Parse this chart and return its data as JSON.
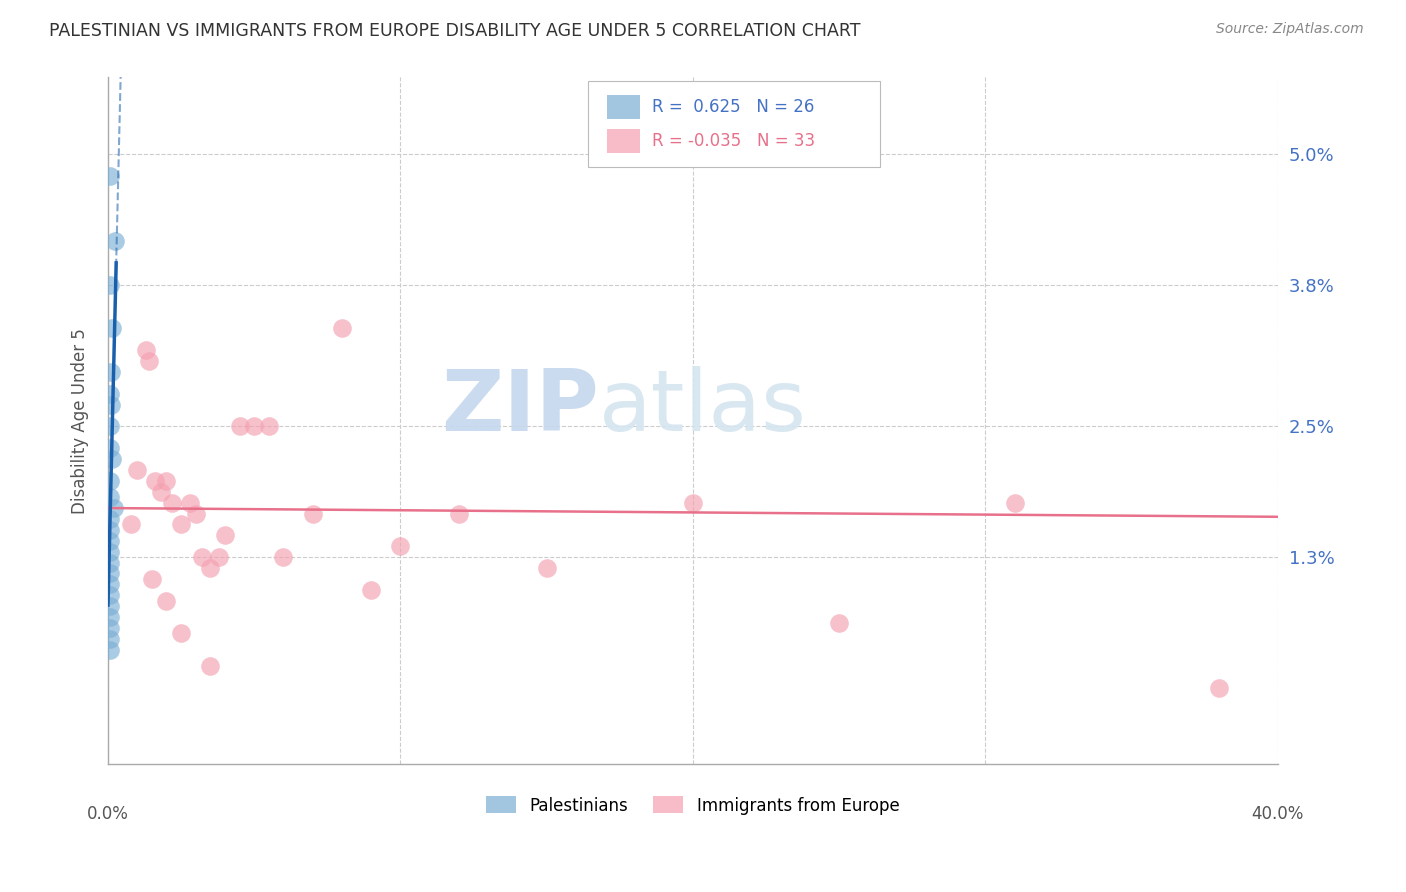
{
  "title": "PALESTINIAN VS IMMIGRANTS FROM EUROPE DISABILITY AGE UNDER 5 CORRELATION CHART",
  "source": "Source: ZipAtlas.com",
  "ylabel": "Disability Age Under 5",
  "ytick_labels": [
    "5.0%",
    "3.8%",
    "2.5%",
    "1.3%"
  ],
  "ytick_values": [
    0.05,
    0.038,
    0.025,
    0.013
  ],
  "xmin": 0.0,
  "xmax": 0.4,
  "ymin": -0.006,
  "ymax": 0.057,
  "legend_blue_r": "0.625",
  "legend_blue_n": "26",
  "legend_pink_r": "-0.035",
  "legend_pink_n": "33",
  "blue_color": "#7BAFD4",
  "pink_color": "#F4A0B0",
  "line_blue": "#1A5FAB",
  "line_pink": "#E8708A",
  "palestinians_x": [
    0.001,
    0.003,
    0.001,
    0.002,
    0.002,
    0.001,
    0.001,
    0.001,
    0.001,
    0.002,
    0.001,
    0.001,
    0.001,
    0.001,
    0.001,
    0.001,
    0.001,
    0.001,
    0.001,
    0.001,
    0.001,
    0.001,
    0.001,
    0.001,
    0.001,
    0.001
  ],
  "palestinians_y": [
    0.048,
    0.042,
    0.038,
    0.034,
    0.03,
    0.028,
    0.027,
    0.025,
    0.023,
    0.022,
    0.02,
    0.019,
    0.018,
    0.017,
    0.016,
    0.015,
    0.014,
    0.013,
    0.012,
    0.011,
    0.01,
    0.009,
    0.008,
    0.007,
    0.006,
    0.005
  ],
  "immigrants_x": [
    0.008,
    0.01,
    0.013,
    0.014,
    0.015,
    0.016,
    0.018,
    0.019,
    0.02,
    0.022,
    0.023,
    0.025,
    0.027,
    0.028,
    0.03,
    0.032,
    0.035,
    0.038,
    0.04,
    0.05,
    0.055,
    0.06,
    0.075,
    0.08,
    0.12,
    0.25,
    0.28,
    0.31,
    0.39,
    0.016,
    0.018,
    0.025,
    0.03
  ],
  "immigrants_y": [
    0.016,
    0.021,
    0.032,
    0.031,
    0.019,
    0.02,
    0.031,
    0.02,
    0.019,
    0.021,
    0.018,
    0.016,
    0.018,
    0.017,
    0.017,
    0.013,
    0.012,
    0.013,
    0.015,
    0.025,
    0.025,
    0.013,
    0.017,
    0.01,
    0.014,
    0.012,
    0.007,
    0.018,
    0.001,
    0.011,
    0.009,
    0.006,
    0.003
  ]
}
